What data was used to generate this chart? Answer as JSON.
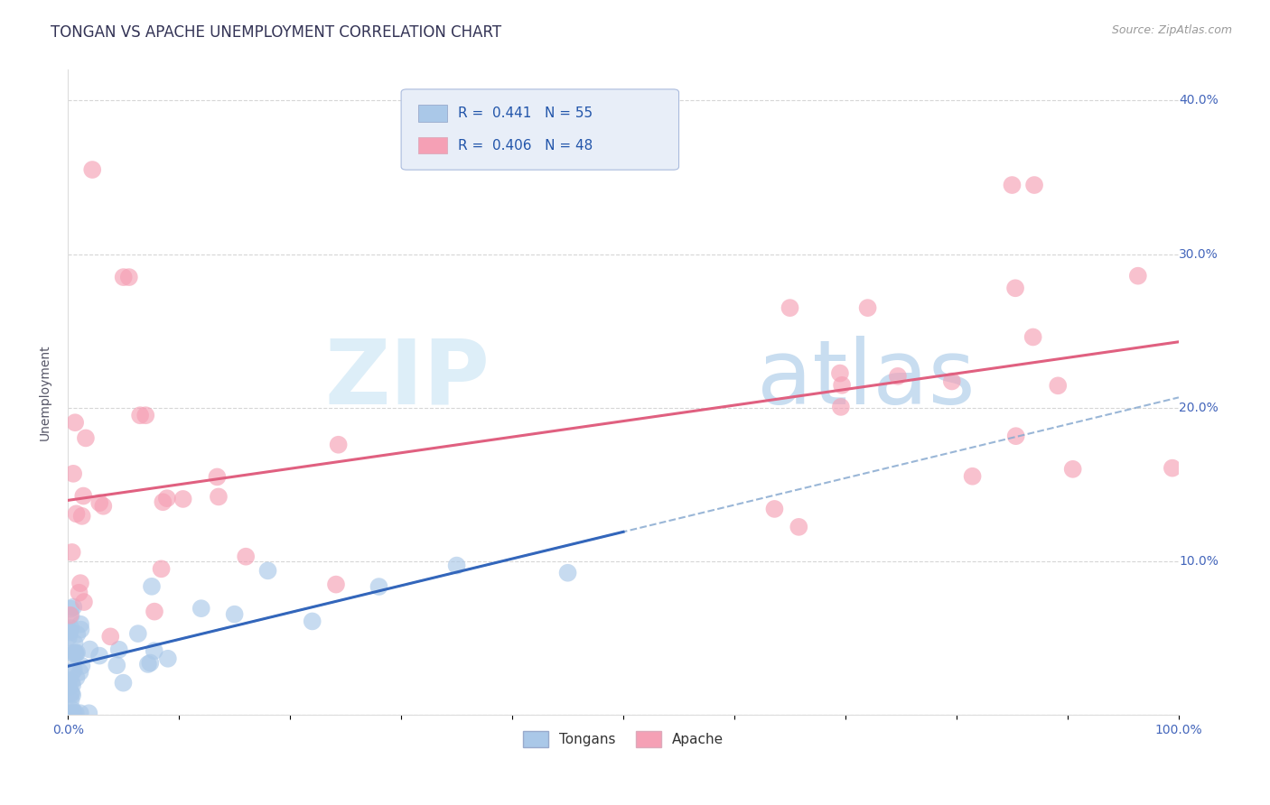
{
  "title": "TONGAN VS APACHE UNEMPLOYMENT CORRELATION CHART",
  "source": "Source: ZipAtlas.com",
  "ylabel": "Unemployment",
  "xlim": [
    0,
    1.0
  ],
  "ylim": [
    0.0,
    0.42
  ],
  "xticks": [
    0.0,
    0.1,
    0.2,
    0.3,
    0.4,
    0.5,
    0.6,
    0.7,
    0.8,
    0.9,
    1.0
  ],
  "xticklabels_shown": [
    "0.0%",
    "",
    "",
    "",
    "",
    "",
    "",
    "",
    "",
    "",
    "100.0%"
  ],
  "yticks": [
    0.0,
    0.1,
    0.2,
    0.3,
    0.4
  ],
  "yticklabels_right": [
    "",
    "10.0%",
    "20.0%",
    "30.0%",
    "40.0%"
  ],
  "tongan_color": "#aac8e8",
  "apache_color": "#f5a0b5",
  "tongan_line_color": "#3366bb",
  "apache_line_color": "#e06080",
  "dashed_line_color": "#88aad0",
  "background_color": "#ffffff",
  "grid_color": "#cccccc",
  "title_color": "#333355",
  "source_color": "#999999",
  "ytick_color": "#4466bb",
  "xtick_color": "#4466bb",
  "legend_box_color": "#e8eef8",
  "legend_border_color": "#aabbdd",
  "watermark_zip_color": "#ddeef8",
  "watermark_atlas_color": "#c8ddf0",
  "title_fontsize": 12,
  "source_fontsize": 9,
  "tick_fontsize": 10,
  "legend_fontsize": 11,
  "ylabel_fontsize": 10
}
